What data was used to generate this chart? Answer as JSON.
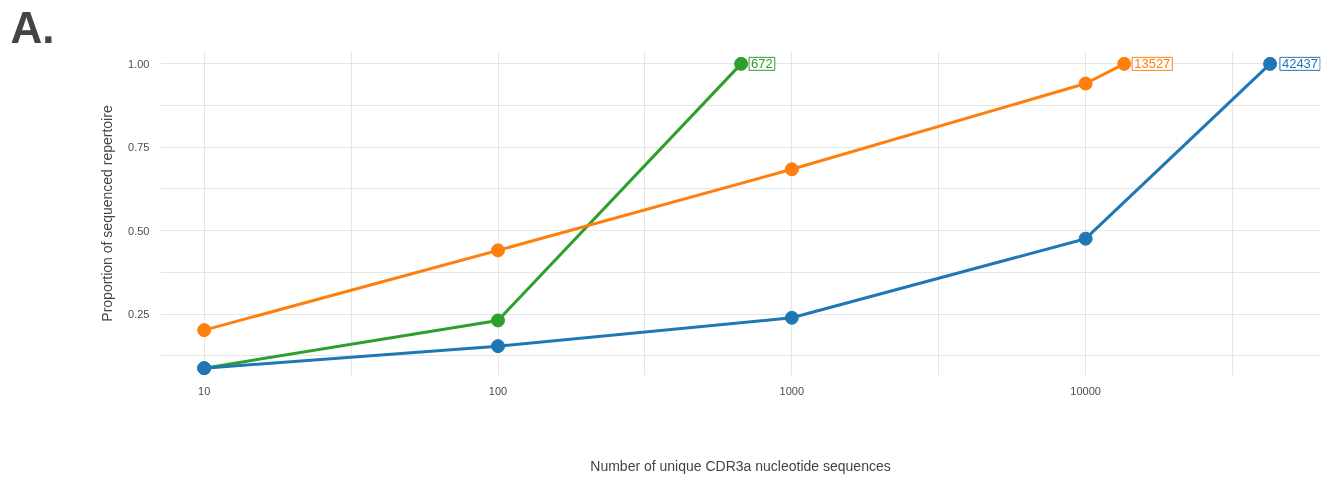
{
  "chart_data": {
    "type": "line",
    "xlabel": "Number of unique CDR3a nucleotide sequences",
    "ylabel": "Proportion of sequenced repertoire",
    "log": "x",
    "xlim": [
      7.1,
      63000
    ],
    "ylim": [
      0.066,
      1.037
    ],
    "xticks": [
      10,
      {
        "value": 31.6,
        "label": null
      },
      100,
      {
        "value": 316,
        "label": null
      },
      1000,
      {
        "value": 3162,
        "label": null
      },
      10000,
      {
        "value": 31623,
        "label": null
      }
    ],
    "yticks": [
      {
        "value": 0.125,
        "label": null
      },
      0.25,
      {
        "value": 0.375,
        "label": null
      },
      {
        "value": 0.5,
        "label": "0.50"
      },
      {
        "value": 0.625,
        "label": null
      },
      0.75,
      {
        "value": 0.875,
        "label": null
      },
      {
        "value": 1.0,
        "label": "1.00"
      }
    ],
    "grid": true,
    "marker": "circle",
    "line_style": "solid",
    "series": [
      {
        "color": "#2ca02c",
        "x": [
          10,
          100,
          672
        ],
        "values": [
          0.088,
          0.231,
          1.0
        ]
      },
      {
        "color": "#ff7f0e",
        "x": [
          10,
          100,
          1000,
          10000,
          13527
        ],
        "values": [
          0.202,
          0.441,
          0.684,
          0.941,
          1.0
        ]
      },
      {
        "color": "#1f77b4",
        "x": [
          10,
          100,
          1000,
          10000,
          42437
        ],
        "values": [
          0.088,
          0.154,
          0.239,
          0.476,
          1.0
        ]
      }
    ],
    "annotations": [
      "A.",
      {
        "text": "672",
        "x": 672,
        "y": 1.0
      },
      {
        "text": "13527",
        "x": 13527,
        "y": 1.0
      },
      {
        "text": "42437",
        "x": 42437,
        "y": 1.0
      }
    ]
  }
}
